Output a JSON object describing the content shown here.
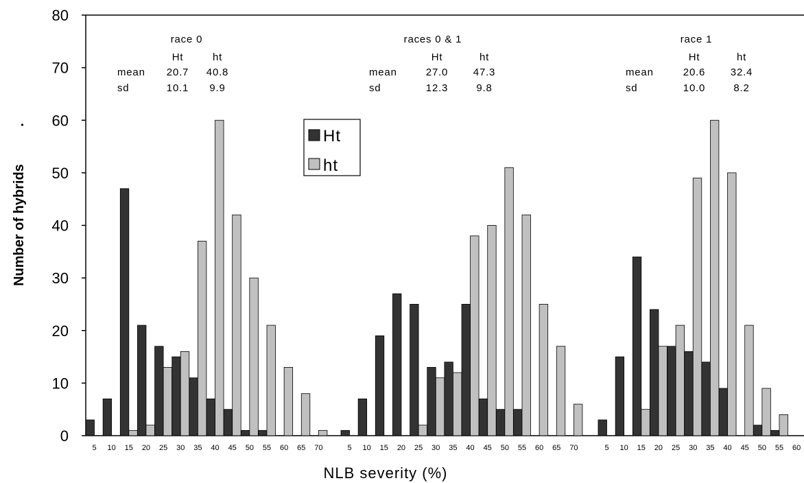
{
  "chart_data": {
    "type": "bar",
    "ylabel": "Number of hybrids",
    "ylabel_suffix": ".",
    "xlabel": "NLB severity (%)",
    "ylim": [
      0,
      80
    ],
    "yticks": [
      0,
      10,
      20,
      30,
      40,
      50,
      60,
      70,
      80
    ],
    "grid": false,
    "legend_position": "top-center",
    "series_names": [
      "Ht",
      "ht"
    ],
    "colors": {
      "Ht": "#333333",
      "ht": "#c0c0c0"
    },
    "groups": [
      {
        "title": "race 0",
        "stats": {
          "header": [
            "Ht",
            "ht"
          ],
          "rows": [
            {
              "label": "mean",
              "Ht": "20.7",
              "ht": "40.8"
            },
            {
              "label": "sd",
              "Ht": "10.1",
              "ht": "9.9"
            }
          ]
        },
        "categories": [
          "5",
          "10",
          "15",
          "20",
          "25",
          "30",
          "35",
          "40",
          "45",
          "50",
          "55",
          "60",
          "65",
          "70"
        ],
        "series": [
          {
            "name": "Ht",
            "values": [
              3,
              7,
              47,
              21,
              17,
              15,
              11,
              7,
              5,
              1,
              1,
              0,
              0,
              0
            ]
          },
          {
            "name": "ht",
            "values": [
              0,
              0,
              1,
              2,
              13,
              16,
              37,
              60,
              42,
              30,
              21,
              13,
              8,
              1
            ]
          }
        ]
      },
      {
        "title": "races 0 & 1",
        "stats": {
          "header": [
            "Ht",
            "ht"
          ],
          "rows": [
            {
              "label": "mean",
              "Ht": "27.0",
              "ht": "47.3"
            },
            {
              "label": "sd",
              "Ht": "12.3",
              "ht": "9.8"
            }
          ]
        },
        "categories": [
          "5",
          "10",
          "15",
          "20",
          "25",
          "30",
          "35",
          "40",
          "45",
          "50",
          "55",
          "60",
          "65",
          "70"
        ],
        "series": [
          {
            "name": "Ht",
            "values": [
              1,
              7,
              19,
              27,
              25,
              13,
              14,
              25,
              7,
              5,
              5,
              0,
              0,
              0
            ]
          },
          {
            "name": "ht",
            "values": [
              0,
              0,
              0,
              0,
              2,
              11,
              12,
              38,
              40,
              51,
              42,
              25,
              17,
              6
            ]
          }
        ]
      },
      {
        "title": "race 1",
        "stats": {
          "header": [
            "Ht",
            "ht"
          ],
          "rows": [
            {
              "label": "mean",
              "Ht": "20.6",
              "ht": "32.4"
            },
            {
              "label": "sd",
              "Ht": "10.0",
              "ht": "8.2"
            }
          ]
        },
        "categories": [
          "5",
          "10",
          "15",
          "20",
          "25",
          "30",
          "35",
          "40",
          "45",
          "50",
          "55",
          "60"
        ],
        "series": [
          {
            "name": "Ht",
            "values": [
              3,
              15,
              34,
              24,
              17,
              16,
              14,
              9,
              0,
              2,
              1,
              0
            ]
          },
          {
            "name": "ht",
            "values": [
              0,
              0,
              5,
              17,
              21,
              49,
              60,
              50,
              21,
              9,
              4,
              0
            ]
          }
        ]
      }
    ]
  }
}
